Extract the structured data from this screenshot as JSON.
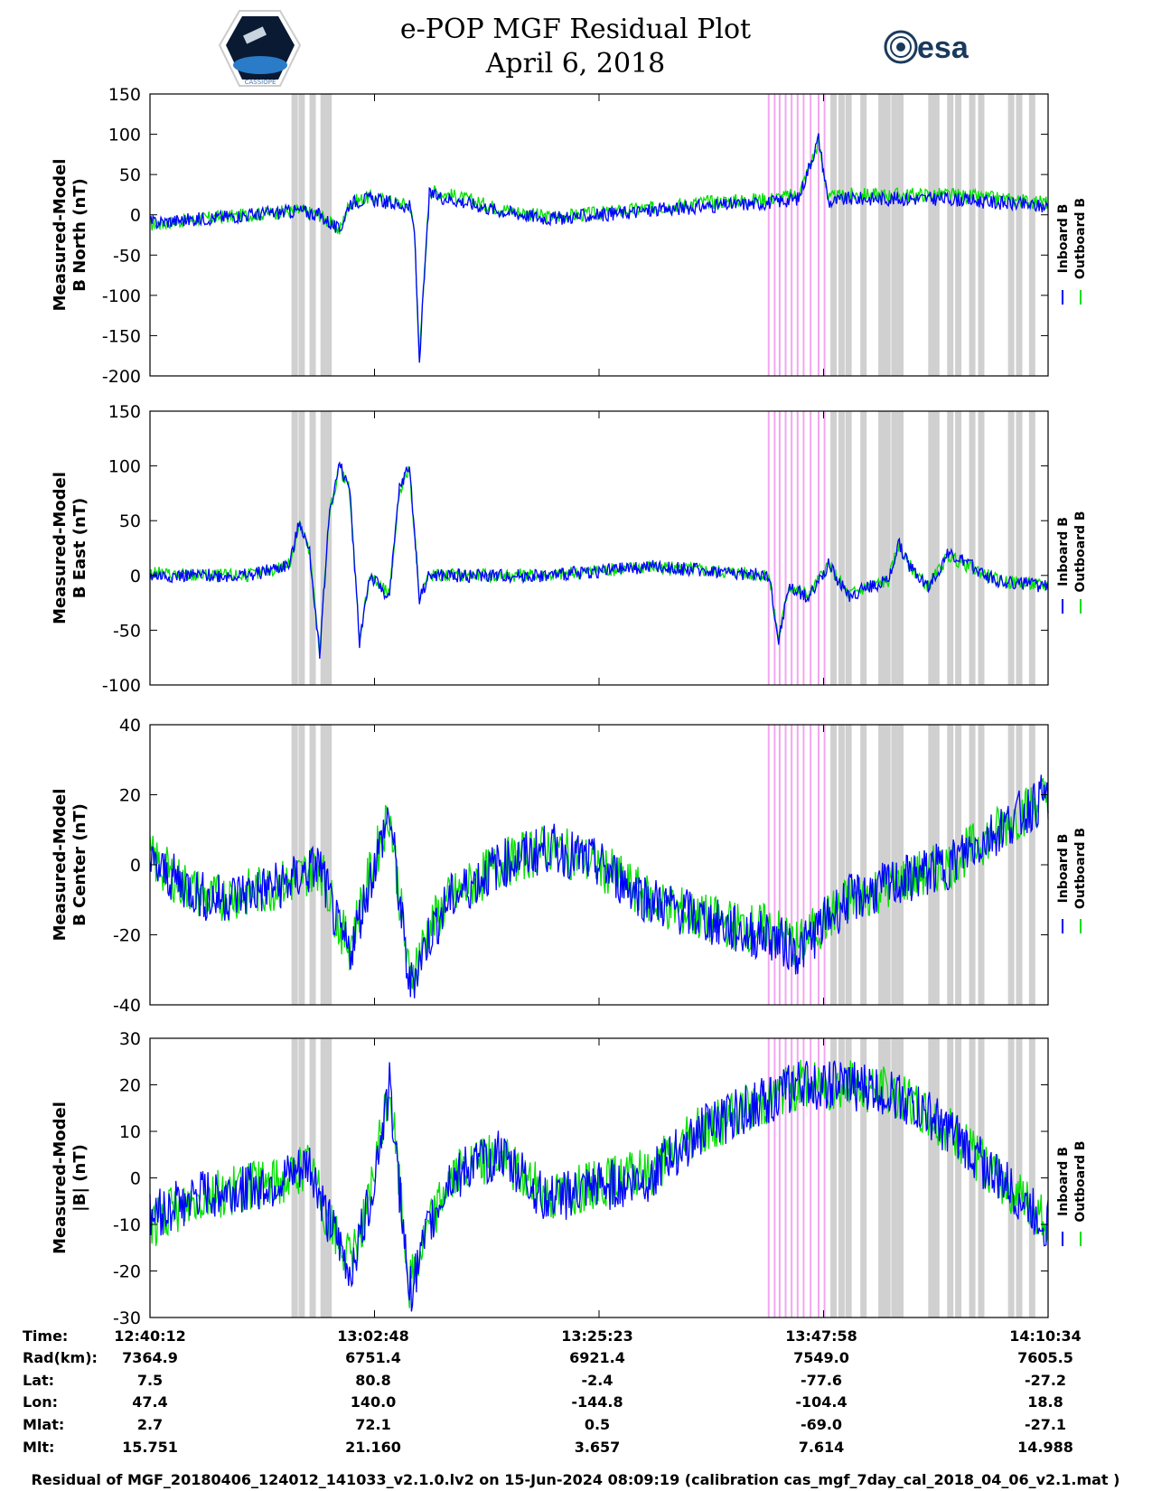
{
  "header": {
    "title": "e-POP MGF Residual Plot",
    "subtitle": "April 6, 2018",
    "left_logo_text": "CASSIOPE",
    "right_logo_text": "esa"
  },
  "legend": {
    "inboard": "Inboard B",
    "outboard": "Outboard B"
  },
  "colors": {
    "inboard": "#0000ff",
    "outboard": "#00e000",
    "gray_band": "#d0d0d0",
    "pink_band": "#f2a7f0"
  },
  "chart_data": [
    {
      "type": "line",
      "ylabel": [
        "Measured-Model",
        "B North (nT)"
      ],
      "ylim": [
        -200,
        150
      ],
      "yticks": [
        "150",
        "100",
        "50",
        "0",
        "-50",
        "-100",
        "-150",
        "-200"
      ],
      "series": [
        {
          "name": "Inboard B",
          "x": [
            0,
            5,
            10,
            15,
            17,
            19,
            20,
            22,
            24,
            26,
            26.5,
            27,
            28,
            30,
            35,
            40,
            45,
            50,
            55,
            62,
            65,
            67,
            68,
            70,
            72,
            75,
            80,
            85,
            90
          ],
          "values": [
            -10,
            -5,
            0,
            5,
            0,
            -20,
            15,
            20,
            15,
            10,
            -20,
            -180,
            25,
            20,
            5,
            -5,
            0,
            5,
            10,
            15,
            20,
            95,
            15,
            20,
            20,
            20,
            20,
            15,
            10
          ]
        },
        {
          "name": "Outboard B",
          "x": [
            0,
            5,
            10,
            15,
            17,
            19,
            20,
            22,
            24,
            26,
            26.5,
            27,
            28,
            30,
            35,
            40,
            45,
            50,
            55,
            62,
            65,
            67,
            68,
            70,
            72,
            75,
            80,
            85,
            90
          ],
          "values": [
            -12,
            -5,
            0,
            5,
            0,
            -20,
            15,
            22,
            17,
            12,
            -20,
            -178,
            30,
            25,
            8,
            -3,
            2,
            8,
            15,
            20,
            25,
            90,
            20,
            25,
            25,
            25,
            25,
            20,
            15
          ]
        }
      ]
    },
    {
      "type": "line",
      "ylabel": [
        "Measured-Model",
        "B East (nT)"
      ],
      "ylim": [
        -100,
        150
      ],
      "yticks": [
        "150",
        "100",
        "50",
        "0",
        "-50",
        "-100"
      ],
      "series": [
        {
          "name": "Inboard B",
          "x": [
            0,
            5,
            10,
            14,
            15,
            16,
            17,
            18,
            19,
            20,
            21,
            22,
            24,
            25,
            26,
            27,
            28,
            30,
            40,
            50,
            55,
            62,
            63,
            64,
            66,
            68,
            70,
            72,
            74,
            75,
            76,
            78,
            80,
            85,
            90
          ],
          "values": [
            0,
            0,
            0,
            10,
            50,
            20,
            -70,
            60,
            100,
            80,
            -60,
            0,
            -20,
            80,
            100,
            -20,
            0,
            0,
            0,
            8,
            5,
            0,
            -60,
            -10,
            -20,
            10,
            -20,
            -10,
            -5,
            30,
            10,
            -10,
            20,
            -5,
            -10
          ]
        },
        {
          "name": "Outboard B",
          "x": [
            0,
            5,
            10,
            14,
            15,
            16,
            17,
            18,
            19,
            20,
            21,
            22,
            24,
            25,
            26,
            27,
            28,
            30,
            40,
            50,
            55,
            62,
            63,
            64,
            66,
            68,
            70,
            72,
            74,
            75,
            76,
            78,
            80,
            85,
            90
          ],
          "values": [
            2,
            0,
            0,
            10,
            48,
            20,
            -68,
            58,
            98,
            78,
            -58,
            0,
            -18,
            78,
            98,
            -18,
            0,
            0,
            0,
            8,
            5,
            0,
            -58,
            -10,
            -18,
            10,
            -18,
            -10,
            -5,
            28,
            10,
            -10,
            18,
            -5,
            -10
          ]
        }
      ]
    },
    {
      "type": "line",
      "ylabel": [
        "Measured-Model",
        "B Center (nT)"
      ],
      "ylim": [
        -40,
        40
      ],
      "yticks": [
        "40",
        "20",
        "0",
        "-20",
        "-40"
      ],
      "series": [
        {
          "name": "Inboard B",
          "x": [
            0,
            3,
            6,
            10,
            14,
            17,
            19,
            20,
            22,
            24,
            26,
            28,
            30,
            35,
            40,
            45,
            50,
            55,
            60,
            62,
            65,
            68,
            70,
            75,
            80,
            85,
            90
          ],
          "values": [
            0,
            -5,
            -10,
            -8,
            -5,
            0,
            -20,
            -25,
            -5,
            15,
            -35,
            -20,
            -10,
            0,
            5,
            0,
            -10,
            -15,
            -20,
            -20,
            -25,
            -15,
            -10,
            -5,
            0,
            10,
            20
          ]
        },
        {
          "name": "Outboard B",
          "x": [
            0,
            3,
            6,
            10,
            14,
            17,
            19,
            20,
            22,
            24,
            26,
            28,
            30,
            35,
            40,
            45,
            50,
            55,
            60,
            62,
            65,
            68,
            70,
            75,
            80,
            85,
            90
          ],
          "values": [
            2,
            -5,
            -10,
            -8,
            -5,
            0,
            -18,
            -23,
            -3,
            15,
            -33,
            -18,
            -10,
            0,
            5,
            0,
            -10,
            -15,
            -18,
            -18,
            -23,
            -15,
            -10,
            -5,
            0,
            10,
            20
          ]
        }
      ]
    },
    {
      "type": "line",
      "ylabel": [
        "Measured-Model",
        "|B| (nT)"
      ],
      "ylim": [
        -30,
        30
      ],
      "yticks": [
        "30",
        "20",
        "10",
        "0",
        "-10",
        "-20",
        "-30"
      ],
      "series": [
        {
          "name": "Inboard B",
          "x": [
            0,
            5,
            10,
            14,
            16,
            18,
            20,
            22,
            24,
            26,
            28,
            30,
            35,
            40,
            45,
            50,
            55,
            60,
            65,
            70,
            75,
            80,
            85,
            90
          ],
          "values": [
            -8,
            -4,
            -2,
            0,
            3,
            -10,
            -20,
            -5,
            20,
            -25,
            -10,
            0,
            5,
            -5,
            -2,
            0,
            10,
            15,
            20,
            20,
            18,
            10,
            0,
            -10
          ]
        },
        {
          "name": "Outboard B",
          "x": [
            0,
            5,
            10,
            14,
            16,
            18,
            20,
            22,
            24,
            26,
            28,
            30,
            35,
            40,
            45,
            50,
            55,
            60,
            65,
            70,
            75,
            80,
            85,
            90
          ],
          "values": [
            -10,
            -4,
            -2,
            0,
            3,
            -10,
            -18,
            -5,
            20,
            -23,
            -10,
            0,
            5,
            -4,
            -1,
            1,
            10,
            15,
            20,
            20,
            18,
            10,
            0,
            -10
          ]
        }
      ]
    }
  ],
  "bands": {
    "gray": [
      14.5,
      15.2,
      16.3,
      17.4,
      17.9,
      68.5,
      69.3,
      70.0,
      71.5,
      73.3,
      73.9,
      74.6,
      75.2,
      78.3,
      78.8,
      80.2,
      81.0,
      82.4,
      83.3,
      86.3,
      87.1,
      88.4
    ],
    "pink": [
      62.0,
      62.6,
      63.1,
      63.7,
      64.3,
      64.9,
      65.5,
      66.2,
      67.0,
      67.6
    ]
  },
  "time_table": {
    "row_labels": [
      "Time:",
      "Rad(km):",
      "Lat:",
      "Lon:",
      "Mlat:",
      "Mlt:"
    ],
    "columns": [
      [
        "12:40:12",
        "7364.9",
        "7.5",
        "47.4",
        "2.7",
        "15.751"
      ],
      [
        "13:02:48",
        "6751.4",
        "80.8",
        "140.0",
        "72.1",
        "21.160"
      ],
      [
        "13:25:23",
        "6921.4",
        "-2.4",
        "-144.8",
        "0.5",
        "3.657"
      ],
      [
        "13:47:58",
        "7549.0",
        "-77.6",
        "-104.4",
        "-69.0",
        "7.614"
      ],
      [
        "14:10:34",
        "7605.5",
        "-27.2",
        "18.8",
        "-27.1",
        "14.988"
      ]
    ]
  },
  "footer": "Residual of MGF_20180406_124012_141033_v2.1.0.lv2 on 15-Jun-2024 08:09:19 (calibration cas_mgf_7day_cal_2018_04_06_v2.1.mat )"
}
